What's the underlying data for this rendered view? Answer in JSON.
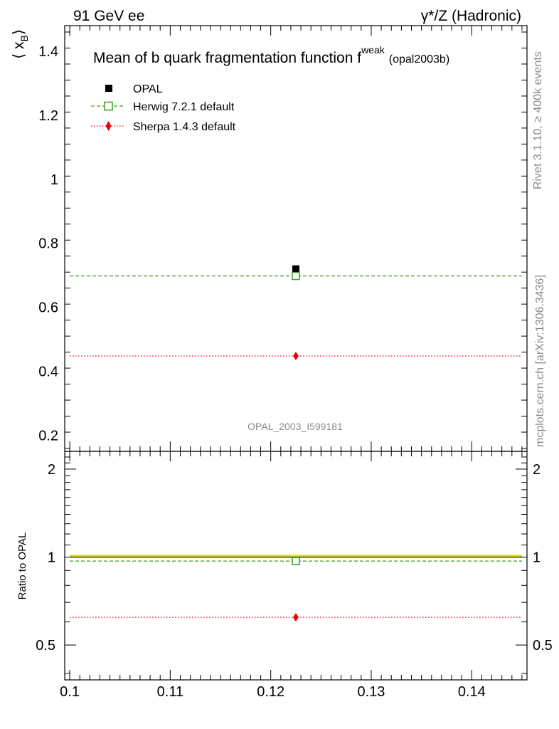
{
  "header": {
    "left": "91 GeV ee",
    "right": "γ*/Z (Hadronic)"
  },
  "side_labels": {
    "rivet": "Rivet 3.1.10, ≥ 400k events",
    "mcplots": "mcplots.cern.ch [arXiv:1306.3436]"
  },
  "chart_data": {
    "type": "scatter",
    "title": "Mean of b quark fragmentation function f",
    "title_superscript": "weak",
    "title_suffix": "(opal2003b)",
    "analysis_label": "OPAL_2003_I599181",
    "ylabel_main": "⟨ x",
    "ylabel_main_sub": "B",
    "ylabel_main_close": "⟩",
    "ylabel_ratio": "Ratio to OPAL",
    "xlim": [
      0.0995,
      0.1455
    ],
    "ylim_main": [
      0.15,
      1.48
    ],
    "ylim_ratio": [
      0.38,
      2.3
    ],
    "ratio_scale": "log",
    "x_ticks": [
      "0.1",
      "0.11",
      "0.12",
      "0.13",
      "0.14"
    ],
    "x_tick_values": [
      0.1,
      0.11,
      0.12,
      0.13,
      0.14
    ],
    "y_ticks_main": [
      "0.2",
      "0.4",
      "0.6",
      "0.8",
      "1",
      "1.2",
      "1.4"
    ],
    "y_tick_values_main": [
      0.2,
      0.4,
      0.6,
      0.8,
      1.0,
      1.2,
      1.4
    ],
    "y_ticks_ratio": [
      "0.5",
      "1",
      "2"
    ],
    "y_tick_values_ratio": [
      0.5,
      1,
      2
    ],
    "x_range_line": [
      0.1,
      0.145
    ],
    "data_x": 0.1225,
    "legend_position": "top-left",
    "series": [
      {
        "name": "OPAL",
        "kind": "data",
        "marker": "filled-square",
        "color": "#000000",
        "y": 0.72,
        "ratio": 1.0
      },
      {
        "name": "Herwig 7.2.1 default",
        "kind": "mc",
        "marker": "open-square",
        "line": "dashed",
        "color": "#3a9e1a",
        "y": 0.698,
        "ratio": 0.969
      },
      {
        "name": "Sherpa 1.4.3 default",
        "kind": "mc",
        "marker": "diamond",
        "line": "dotted",
        "color": "#e8000b",
        "y": 0.448,
        "ratio": 0.622
      }
    ]
  }
}
